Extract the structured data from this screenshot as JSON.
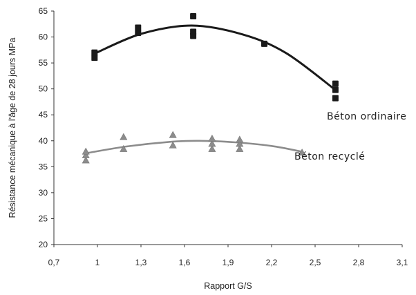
{
  "chart_data": {
    "type": "scatter",
    "title": "",
    "xlabel": "Rapport G/S",
    "ylabel": "Résistance mécanique à l'âge de 28 jours MPa",
    "xlim": [
      0.7,
      3.1
    ],
    "ylim": [
      20,
      65
    ],
    "xticks": [
      0.7,
      1.0,
      1.3,
      1.6,
      1.9,
      2.2,
      2.5,
      2.8,
      3.1
    ],
    "xtick_labels": [
      "0,7",
      "1",
      "1,3",
      "1,6",
      "1,9",
      "2,2",
      "2,5",
      "2,8",
      "3,1"
    ],
    "yticks": [
      20,
      25,
      30,
      35,
      40,
      45,
      50,
      55,
      60,
      65
    ],
    "grid": false,
    "legend": "inline labels",
    "series": [
      {
        "name": "Béton ordinaire",
        "marker": "square",
        "color": "#1a1a1a",
        "points": [
          [
            0.98,
            56.0
          ],
          [
            0.98,
            57.0
          ],
          [
            1.28,
            60.8
          ],
          [
            1.28,
            61.8
          ],
          [
            1.66,
            60.2
          ],
          [
            1.66,
            61.0
          ],
          [
            1.66,
            64.0
          ],
          [
            2.15,
            58.7
          ],
          [
            2.64,
            48.2
          ],
          [
            2.64,
            49.8
          ],
          [
            2.64,
            51.0
          ]
        ],
        "fit": [
          [
            0.98,
            56.8
          ],
          [
            1.3,
            60.6
          ],
          [
            1.65,
            62.2
          ],
          [
            2.0,
            60.5
          ],
          [
            2.3,
            56.9
          ],
          [
            2.64,
            49.8
          ]
        ]
      },
      {
        "name": "Béton recyclé",
        "marker": "triangle",
        "color": "#8c8c8c",
        "points": [
          [
            0.92,
            36.3
          ],
          [
            0.92,
            37.3
          ],
          [
            0.92,
            38.0
          ],
          [
            1.18,
            38.5
          ],
          [
            1.18,
            40.8
          ],
          [
            1.52,
            39.2
          ],
          [
            1.52,
            41.2
          ],
          [
            1.79,
            38.5
          ],
          [
            1.79,
            39.5
          ],
          [
            1.79,
            40.5
          ],
          [
            1.98,
            38.5
          ],
          [
            1.98,
            39.5
          ],
          [
            1.98,
            40.3
          ],
          [
            2.41,
            37.8
          ]
        ],
        "fit": [
          [
            0.92,
            37.6
          ],
          [
            1.2,
            38.9
          ],
          [
            1.5,
            39.8
          ],
          [
            1.7,
            40.0
          ],
          [
            1.95,
            39.7
          ],
          [
            2.2,
            39.0
          ],
          [
            2.41,
            37.9
          ]
        ]
      }
    ]
  }
}
